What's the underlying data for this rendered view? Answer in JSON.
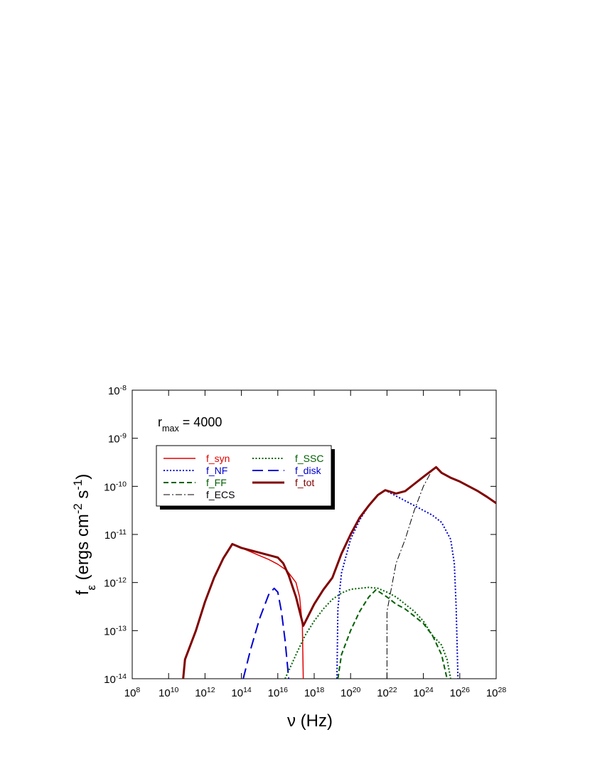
{
  "chart_data": {
    "type": "line",
    "xlabel": "ν (Hz)",
    "ylabel": "f_{ε} (ergs cm^{-2} s^{-1})",
    "annotation": "r_{max} = 4000",
    "xlog": true,
    "ylog": true,
    "xlim": [
      100000000.0,
      1e+28
    ],
    "ylim": [
      1e-14,
      1e-08
    ],
    "xticks": [
      {
        "value": 100000000.0,
        "label": "10^{8}"
      },
      {
        "value": 10000000000.0,
        "label": "10^{10}"
      },
      {
        "value": 1000000000000.0,
        "label": "10^{12}"
      },
      {
        "value": 100000000000000.0,
        "label": "10^{14}"
      },
      {
        "value": 1e+16,
        "label": "10^{16}"
      },
      {
        "value": 1e+18,
        "label": "10^{18}"
      },
      {
        "value": 1e+20,
        "label": "10^{20}"
      },
      {
        "value": 1e+22,
        "label": "10^{22}"
      },
      {
        "value": 1e+24,
        "label": "10^{24}"
      },
      {
        "value": 1e+26,
        "label": "10^{26}"
      },
      {
        "value": 1e+28,
        "label": "10^{28}"
      }
    ],
    "yticks": [
      {
        "value": 1e-14,
        "label": "10^{-14}"
      },
      {
        "value": 1e-13,
        "label": "10^{-13}"
      },
      {
        "value": 1e-12,
        "label": "10^{-12}"
      },
      {
        "value": 1e-11,
        "label": "10^{-11}"
      },
      {
        "value": 1e-10,
        "label": "10^{-10}"
      },
      {
        "value": 1e-09,
        "label": "10^{-9}"
      },
      {
        "value": 1e-08,
        "label": "10^{-8}"
      }
    ],
    "legend": "upper left",
    "series": [
      {
        "name": "f_syn",
        "color": "#e00000",
        "dash": "solid",
        "width": 1.5,
        "x": [
          63100000000.0,
          79400000000.0,
          316000000000.0,
          1000000000000.0,
          3160000000000.0,
          10000000000000.0,
          31600000000000.0,
          100000000000000.0,
          316000000000000.0,
          1000000000000000.0,
          3160000000000000.0,
          1e+16,
          3.16e+16,
          1e+17,
          1.58e+17,
          2.24e+17,
          2.51e+17
        ],
        "values": [
          1e-14,
          2.51e-14,
          1e-13,
          3.98e-13,
          1.26e-12,
          3.16e-12,
          6.31e-12,
          5.25e-12,
          4.37e-12,
          3.63e-12,
          3.02e-12,
          2.4e-12,
          1.78e-12,
          1e-12,
          5.01e-13,
          1.26e-13,
          1e-14
        ]
      },
      {
        "name": "f_NF",
        "color": "#0000d0",
        "dash": "dotted",
        "width": 2,
        "x": [
          1.78e+19,
          2e+19,
          3.16e+19,
          1e+20,
          3.16e+20,
          1e+21,
          3.16e+21,
          7.94e+21,
          3.16e+22,
          1e+23,
          3.16e+23,
          1e+24,
          3.16e+24,
          1e+25,
          3.16e+25,
          5.01e+25,
          6.31e+25,
          7.94e+25
        ],
        "values": [
          1e-14,
          2.82e-13,
          1.58e-12,
          7.94e-12,
          2e-11,
          3.98e-11,
          6.61e-11,
          8.32e-11,
          6.31e-11,
          5.01e-11,
          3.98e-11,
          3.16e-11,
          2.51e-11,
          1.78e-11,
          7.94e-12,
          2.51e-12,
          3.16e-13,
          1e-14
        ]
      },
      {
        "name": "f_FF",
        "color": "#006000",
        "dash": "dashed",
        "width": 2,
        "x": [
          2e+19,
          3.16e+19,
          1e+20,
          3.16e+20,
          1e+21,
          2.51e+21,
          1e+22,
          3.16e+22,
          1e+23,
          3.16e+23,
          1e+24,
          3.16e+24,
          1e+25,
          2e+25
        ],
        "values": [
          1e-14,
          3.16e-14,
          1e-13,
          2.51e-13,
          5.01e-13,
          7.08e-13,
          5.01e-13,
          3.55e-13,
          2.82e-13,
          2e-13,
          1.41e-13,
          7.94e-14,
          3.16e-14,
          1e-14
        ]
      },
      {
        "name": "f_ECS",
        "color": "#000000",
        "dash": "dashdot",
        "width": 1,
        "x": [
          1e+22,
          1e+22,
          3.16e+22,
          1e+23,
          3.16e+23,
          1e+24,
          3.16e+24,
          5.01e+24,
          1e+25,
          3.16e+25,
          1e+26,
          3.16e+26,
          1e+27,
          3.16e+27,
          1e+28
        ],
        "values": [
          1e-14,
          2.51e-13,
          2.51e-12,
          7.94e-12,
          3.16e-11,
          1e-10,
          2.24e-10,
          2.51e-10,
          1.91e-10,
          1.51e-10,
          1.26e-10,
          1e-10,
          7.94e-11,
          6.03e-11,
          4.47e-11
        ]
      },
      {
        "name": "f_SSC",
        "color": "#006000",
        "dash": "dotted",
        "width": 2,
        "x": [
          2.51e+16,
          1e+17,
          3.16e+17,
          1e+18,
          3.16e+18,
          1e+19,
          3.16e+19,
          1e+20,
          1e+21,
          3.16e+21,
          1e+22,
          3.16e+22,
          1e+23,
          3.16e+23,
          1e+24,
          3.16e+24,
          1e+25,
          2e+25,
          3.16e+25
        ],
        "values": [
          1e-14,
          3.16e-14,
          7.94e-14,
          1.58e-13,
          2.82e-13,
          4.47e-13,
          6.03e-13,
          7.24e-13,
          7.94e-13,
          7.59e-13,
          6.31e-13,
          5.01e-13,
          3.55e-13,
          2.51e-13,
          1.58e-13,
          7.94e-14,
          5.01e-14,
          2.51e-14,
          1e-14
        ]
      },
      {
        "name": "f_disk",
        "color": "#0000d0",
        "dash": "longdash",
        "width": 2,
        "x": [
          126000000000000.0,
          316000000000000.0,
          1000000000000000.0,
          3160000000000000.0,
          6310000000000000.0,
          1e+16,
          1.58e+16,
          2.51e+16,
          3.98e+16
        ],
        "values": [
          1e-14,
          3.98e-14,
          1.78e-13,
          5.62e-13,
          7.59e-13,
          6.31e-13,
          2.51e-13,
          6.31e-14,
          1e-14
        ]
      },
      {
        "name": "f_tot",
        "color": "#800000",
        "dash": "solid",
        "width": 3,
        "x": [
          63100000000.0,
          79400000000.0,
          316000000000.0,
          1000000000000.0,
          3160000000000.0,
          10000000000000.0,
          31600000000000.0,
          100000000000000.0,
          1000000000000000.0,
          3160000000000000.0,
          1e+16,
          2e+16,
          3.98e+16,
          1e+17,
          2e+17,
          2.51e+17,
          3.98e+17,
          1e+18,
          3.16e+18,
          1e+19,
          3.16e+19,
          1e+20,
          3.16e+20,
          1e+21,
          3.16e+21,
          7.94e+21,
          3.16e+22,
          1e+23,
          3.16e+23,
          1e+24,
          5.01e+24,
          1e+25,
          3.16e+25,
          1e+26,
          3.16e+26,
          1e+27,
          3.16e+27,
          1e+28
        ],
        "values": [
          1e-14,
          2.51e-14,
          1e-13,
          3.98e-13,
          1.26e-12,
          3.16e-12,
          6.31e-12,
          5.25e-12,
          4.17e-12,
          3.72e-12,
          3.31e-12,
          2.51e-12,
          1.41e-12,
          5.01e-13,
          1.78e-13,
          1.26e-13,
          1.78e-13,
          3.55e-13,
          7.08e-13,
          1.26e-12,
          3.98e-12,
          1e-11,
          2.24e-11,
          3.98e-11,
          6.61e-11,
          8.32e-11,
          7.08e-11,
          7.94e-11,
          1.12e-10,
          1.58e-10,
          2.51e-10,
          1.91e-10,
          1.51e-10,
          1.26e-10,
          1e-10,
          7.94e-11,
          6.03e-11,
          4.47e-11
        ]
      }
    ]
  }
}
